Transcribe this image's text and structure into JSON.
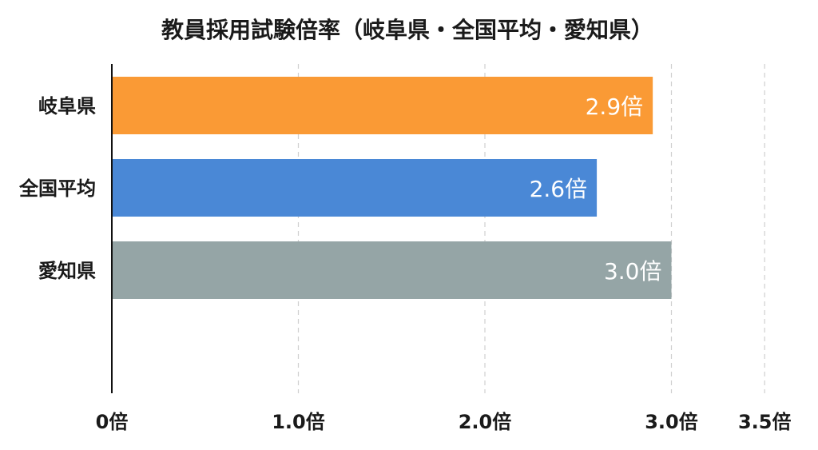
{
  "chart_data": {
    "type": "bar",
    "orientation": "horizontal",
    "title": "教員採用試験倍率（岐阜県・全国平均・愛知県）",
    "xlabel": "",
    "ylabel": "",
    "categories": [
      "岐阜県",
      "全国平均",
      "愛知県"
    ],
    "values": [
      2.9,
      2.6,
      3.0
    ],
    "data_labels": [
      "2.9倍",
      "2.6倍",
      "3.0倍"
    ],
    "colors": [
      "#FA9A35",
      "#4A88D6",
      "#95A5A6"
    ],
    "xlim": [
      0,
      3.6
    ],
    "x_ticks": [
      0,
      1.0,
      2.0,
      3.0,
      3.5
    ],
    "x_tick_labels": [
      "0倍",
      "1.0倍",
      "2.0倍",
      "3.0倍",
      "3.5倍"
    ],
    "grid": "vertical-dashed",
    "legend": "none"
  }
}
